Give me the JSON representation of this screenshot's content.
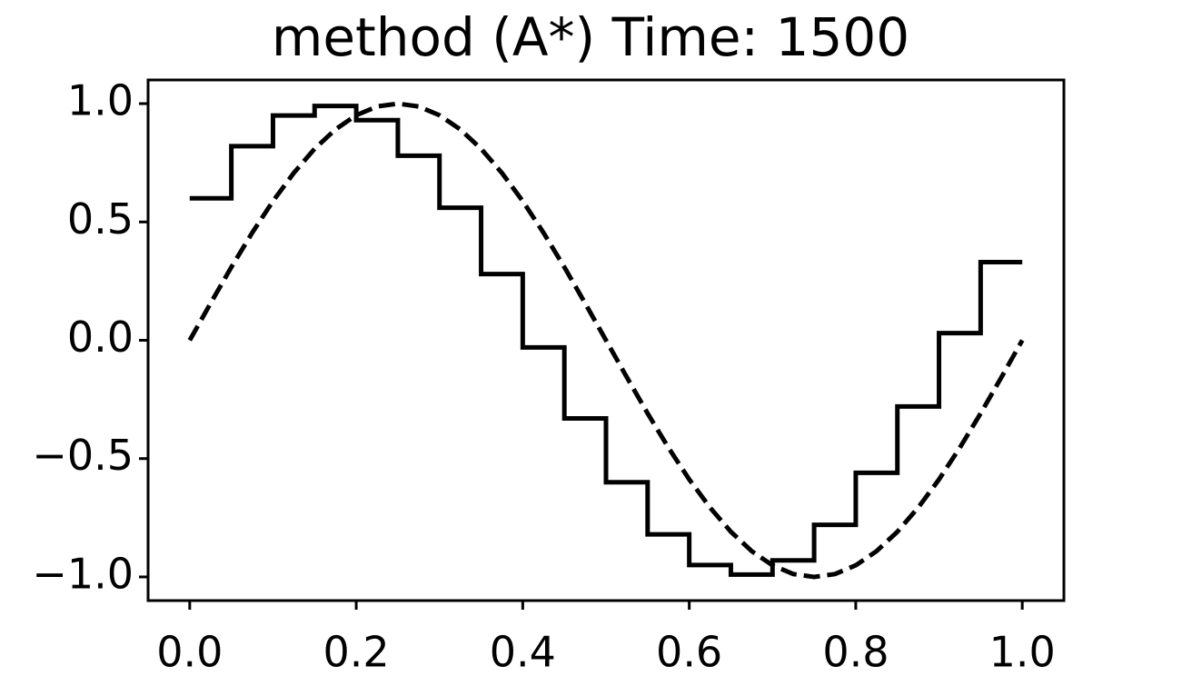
{
  "chart_data": {
    "type": "line",
    "title": "method (A*)   Time: 1500",
    "xlim": [
      -0.05,
      1.05
    ],
    "ylim": [
      -1.1,
      1.1
    ],
    "xticks": [
      {
        "value": 0,
        "label": "0.0"
      },
      {
        "value": 0.2,
        "label": "0.2"
      },
      {
        "value": 0.4,
        "label": "0.4"
      },
      {
        "value": 0.6,
        "label": "0.6"
      },
      {
        "value": 0.8,
        "label": "0.8"
      },
      {
        "value": 1,
        "label": "1.0"
      }
    ],
    "yticks": [
      {
        "value": -1,
        "label": "−1.0"
      },
      {
        "value": -0.5,
        "label": "−0.5"
      },
      {
        "value": 0,
        "label": "0.0"
      },
      {
        "value": 0.5,
        "label": "0.5"
      },
      {
        "value": 1,
        "label": "1.0"
      }
    ],
    "series": [
      {
        "color": "#000000",
        "linestyle": "solid",
        "drawstyle": "steps-post",
        "x": [
          0,
          0.05,
          0.1,
          0.15,
          0.2,
          0.25,
          0.3,
          0.35,
          0.4,
          0.45,
          0.5,
          0.55,
          0.6,
          0.65,
          0.7,
          0.75,
          0.8,
          0.85,
          0.9,
          0.95,
          1.0
        ],
        "values": [
          0.6,
          0.82,
          0.95,
          0.99,
          0.93,
          0.78,
          0.56,
          0.28,
          -0.03,
          -0.33,
          -0.6,
          -0.82,
          -0.95,
          -0.99,
          -0.93,
          -0.78,
          -0.56,
          -0.28,
          0.03,
          0.33,
          0.33
        ]
      },
      {
        "color": "#000000",
        "linestyle": "dashed",
        "drawstyle": "default",
        "x": [
          0,
          0.025,
          0.05,
          0.075,
          0.1,
          0.125,
          0.15,
          0.175,
          0.2,
          0.225,
          0.25,
          0.275,
          0.3,
          0.325,
          0.35,
          0.375,
          0.4,
          0.425,
          0.45,
          0.475,
          0.5,
          0.525,
          0.55,
          0.575,
          0.6,
          0.625,
          0.65,
          0.675,
          0.7,
          0.725,
          0.75,
          0.775,
          0.8,
          0.825,
          0.85,
          0.875,
          0.9,
          0.925,
          0.95,
          0.975,
          1.0
        ],
        "values": [
          0,
          0.156,
          0.309,
          0.454,
          0.588,
          0.707,
          0.809,
          0.891,
          0.951,
          0.988,
          1.0,
          0.988,
          0.951,
          0.891,
          0.809,
          0.707,
          0.588,
          0.454,
          0.309,
          0.156,
          0,
          -0.156,
          -0.309,
          -0.454,
          -0.588,
          -0.707,
          -0.809,
          -0.891,
          -0.951,
          -0.988,
          -1.0,
          -0.988,
          -0.951,
          -0.891,
          -0.809,
          -0.707,
          -0.588,
          -0.454,
          -0.309,
          -0.156,
          0
        ]
      }
    ]
  }
}
